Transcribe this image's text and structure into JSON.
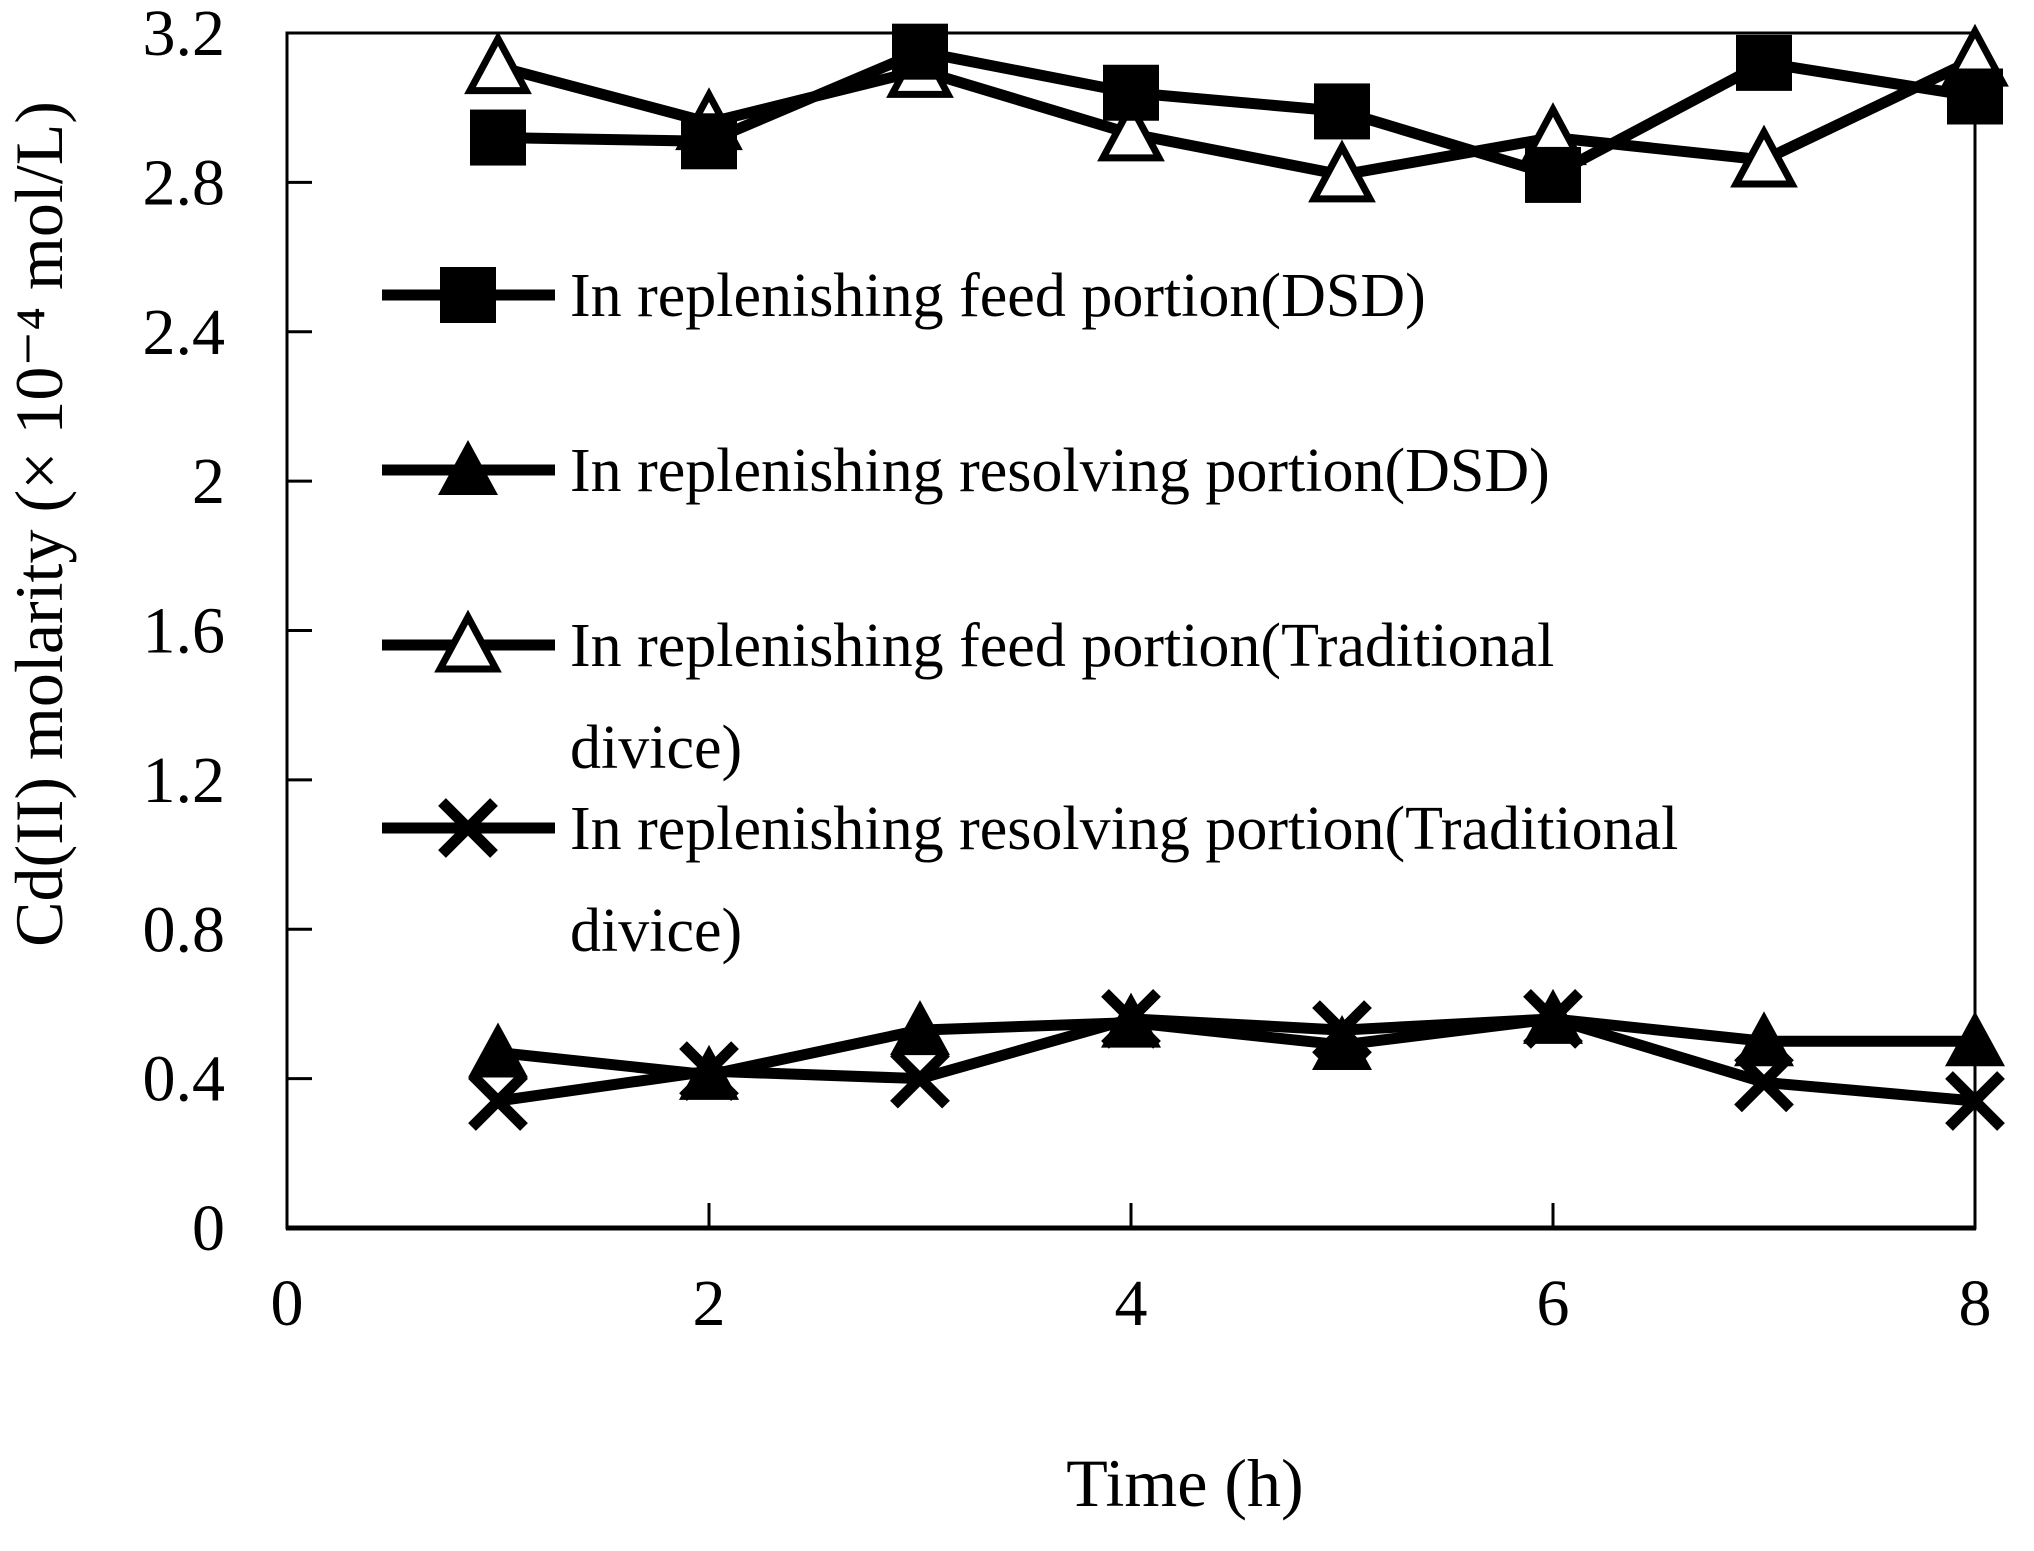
{
  "chart_data": {
    "type": "line",
    "title": "",
    "xlabel": "Time (h)",
    "ylabel": "Cd(II) molarity (× 10⁻⁴ mol/L)",
    "xlim": [
      0,
      8
    ],
    "ylim": [
      0,
      3.2
    ],
    "grid": false,
    "legend_position": "inside-upper-left",
    "x": [
      1,
      2,
      3,
      4,
      5,
      6,
      7,
      8
    ],
    "x_ticks": [
      {
        "value": 0,
        "label": "0"
      },
      {
        "value": 2,
        "label": "2"
      },
      {
        "value": 4,
        "label": "4"
      },
      {
        "value": 6,
        "label": "6"
      },
      {
        "value": 8,
        "label": "8"
      }
    ],
    "y_ticks": [
      {
        "value": 0,
        "label": "0"
      },
      {
        "value": 0.4,
        "label": "0.4"
      },
      {
        "value": 0.8,
        "label": "0.8"
      },
      {
        "value": 1.2,
        "label": "1.2"
      },
      {
        "value": 1.6,
        "label": "1.6"
      },
      {
        "value": 2,
        "label": "2"
      },
      {
        "value": 2.4,
        "label": "2.4"
      },
      {
        "value": 2.8,
        "label": "2.8"
      },
      {
        "value": 3.2,
        "label": "3.2"
      }
    ],
    "series": [
      {
        "name": "In replenishing feed portion(DSD)",
        "marker": "filled-square",
        "values": [
          2.92,
          2.91,
          3.15,
          3.04,
          2.99,
          2.82,
          3.12,
          3.03
        ],
        "label_lines": [
          "In replenishing feed portion(DSD)"
        ]
      },
      {
        "name": "In replenishing resolving portion(DSD)",
        "marker": "filled-triangle",
        "values": [
          0.47,
          0.41,
          0.53,
          0.55,
          0.49,
          0.56,
          0.5,
          0.5
        ],
        "label_lines": [
          "In replenishing resolving portion(DSD)"
        ]
      },
      {
        "name": "In replenishing feed portion(Traditional divice)",
        "marker": "open-triangle",
        "values": [
          3.11,
          2.96,
          3.1,
          2.93,
          2.82,
          2.92,
          2.86,
          3.13
        ],
        "label_lines": [
          "In replenishing feed portion(Traditional",
          "divice)"
        ]
      },
      {
        "name": "In replenishing resolving portion(Traditional divice)",
        "marker": "x-cross",
        "values": [
          0.34,
          0.42,
          0.4,
          0.56,
          0.53,
          0.56,
          0.39,
          0.34
        ],
        "label_lines": [
          "In replenishing resolving portion(Traditional",
          "divice)"
        ]
      }
    ],
    "colors": {
      "foreground": "#000000",
      "background": "#ffffff"
    }
  }
}
